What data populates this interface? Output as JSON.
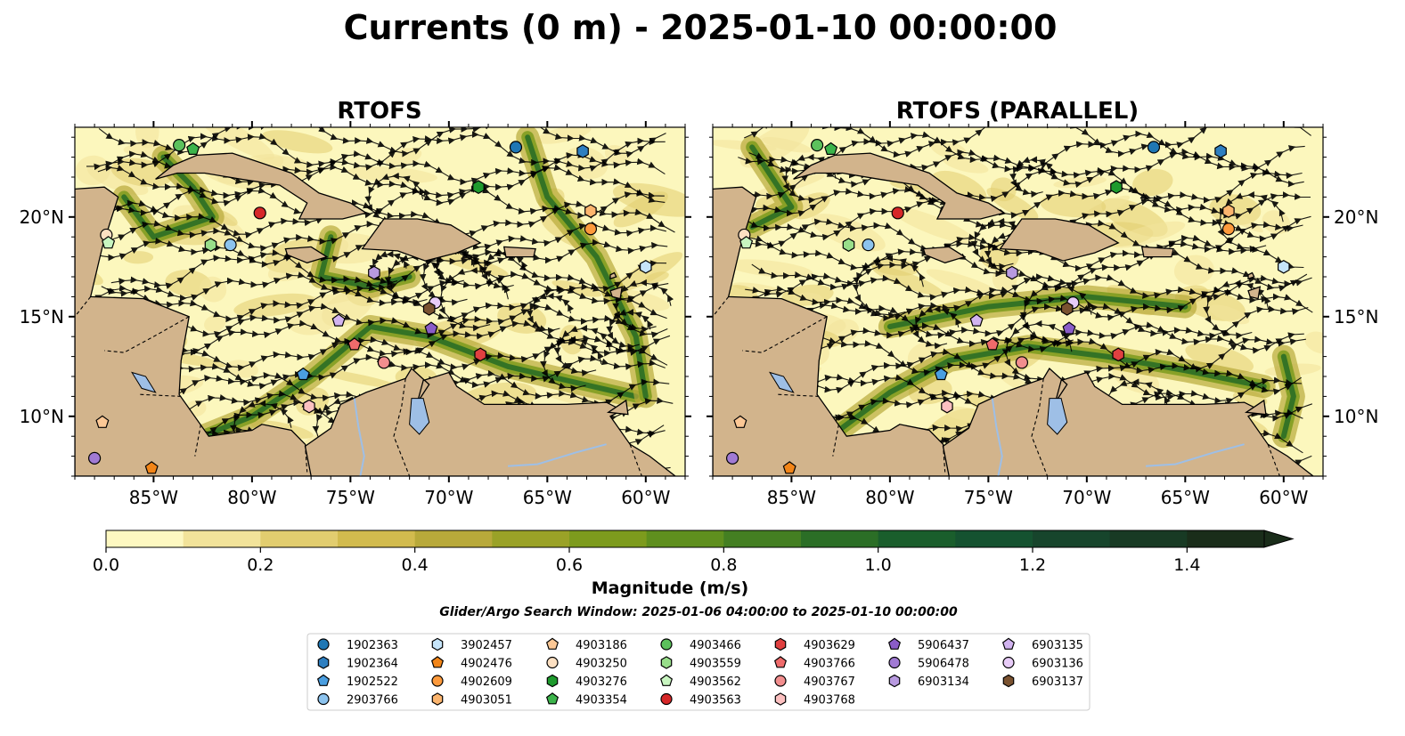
{
  "title": "Currents (0 m) - 2025-01-10 00:00:00",
  "panels": [
    {
      "title": "RTOFS"
    },
    {
      "title": "RTOFS (PARALLEL)"
    }
  ],
  "map": {
    "lon_range": [
      -89.0,
      -58.0
    ],
    "lat_range": [
      7.0,
      24.5
    ],
    "lon_ticks": [
      -85,
      -80,
      -75,
      -70,
      -65,
      -60
    ],
    "lon_tick_labels": [
      "85°W",
      "80°W",
      "75°W",
      "70°W",
      "65°W",
      "60°W"
    ],
    "lat_ticks": [
      10,
      15,
      20
    ],
    "lat_tick_labels": [
      "10°N",
      "15°N",
      "20°N"
    ],
    "land_color": "#d2b48c",
    "water_color": "#9ebfe6",
    "ocean_low_color": "#fcf7bd"
  },
  "colorbar": {
    "label": "Magnitude (m/s)",
    "range": [
      0.0,
      1.5
    ],
    "extend": "max",
    "tick_values": [
      0.0,
      0.2,
      0.4,
      0.6,
      0.8,
      1.0,
      1.2,
      1.4
    ],
    "tick_labels": [
      "0.0",
      "0.2",
      "0.4",
      "0.6",
      "0.8",
      "1.0",
      "1.2",
      "1.4"
    ],
    "colors": [
      "#fdf8c1",
      "#f2e39a",
      "#e2cd6f",
      "#d2bb4e",
      "#b8a93a",
      "#9aa227",
      "#7d9b1d",
      "#5f8f1e",
      "#447f22",
      "#2b6e26",
      "#1a5e2c",
      "#155230",
      "#17452c",
      "#183a24",
      "#1a2d1a"
    ]
  },
  "search_window": "Glider/Argo Search Window: 2025-01-06 04:00:00 to 2025-01-10 00:00:00",
  "legend": {
    "columns": [
      [
        {
          "id": "1902363",
          "marker": "circle",
          "color": "#1f77b4"
        },
        {
          "id": "1902364",
          "marker": "hexagon",
          "color": "#2e7fc0"
        },
        {
          "id": "1902522",
          "marker": "pentagon",
          "color": "#4a9ee0"
        },
        {
          "id": "2903766",
          "marker": "circle",
          "color": "#8cc3ee"
        }
      ],
      [
        {
          "id": "3902457",
          "marker": "hexagon",
          "color": "#c6e5fa"
        },
        {
          "id": "4902476",
          "marker": "pentagon",
          "color": "#f28518"
        },
        {
          "id": "4902609",
          "marker": "circle",
          "color": "#fd9a3c"
        },
        {
          "id": "4903051",
          "marker": "hexagon",
          "color": "#fcb56e"
        }
      ],
      [
        {
          "id": "4903186",
          "marker": "pentagon",
          "color": "#fcc896"
        },
        {
          "id": "4903250",
          "marker": "circle",
          "color": "#fde0c2"
        },
        {
          "id": "4903276",
          "marker": "hexagon",
          "color": "#1e9a2d"
        },
        {
          "id": "4903354",
          "marker": "pentagon",
          "color": "#3cb44b"
        }
      ],
      [
        {
          "id": "4903466",
          "marker": "circle",
          "color": "#5cc15c"
        },
        {
          "id": "4903559",
          "marker": "hexagon",
          "color": "#98de8a"
        },
        {
          "id": "4903562",
          "marker": "pentagon",
          "color": "#c8f5c0"
        },
        {
          "id": "4903563",
          "marker": "circle",
          "color": "#d62728"
        }
      ],
      [
        {
          "id": "4903629",
          "marker": "hexagon",
          "color": "#e04040"
        },
        {
          "id": "4903766",
          "marker": "pentagon",
          "color": "#ef6b6b"
        },
        {
          "id": "4903767",
          "marker": "circle",
          "color": "#f28e8e"
        },
        {
          "id": "4903768",
          "marker": "hexagon",
          "color": "#fcc0c0"
        }
      ],
      [
        {
          "id": "5906437",
          "marker": "pentagon",
          "color": "#8a5cc8"
        },
        {
          "id": "5906478",
          "marker": "circle",
          "color": "#a17ad4"
        },
        {
          "id": "6903134",
          "marker": "hexagon",
          "color": "#b89ae0"
        }
      ],
      [
        {
          "id": "6903135",
          "marker": "pentagon",
          "color": "#d2b4f0"
        },
        {
          "id": "6903136",
          "marker": "circle",
          "color": "#e8ccf8"
        },
        {
          "id": "6903137",
          "marker": "hexagon",
          "color": "#7a5230"
        }
      ]
    ]
  },
  "floats_rtofs": [
    {
      "id": "1902363",
      "lon": -66.6,
      "lat": 23.5
    },
    {
      "id": "1902364",
      "lon": -63.2,
      "lat": 23.3
    },
    {
      "id": "1902522",
      "lon": -77.4,
      "lat": 12.1
    },
    {
      "id": "2903766",
      "lon": -81.1,
      "lat": 18.6
    },
    {
      "id": "3902457",
      "lon": -60.0,
      "lat": 17.5
    },
    {
      "id": "4902476",
      "lon": -85.1,
      "lat": 7.4
    },
    {
      "id": "4902609",
      "lon": -62.8,
      "lat": 19.4
    },
    {
      "id": "4903051",
      "lon": -62.8,
      "lat": 20.3
    },
    {
      "id": "4903186",
      "lon": -87.6,
      "lat": 9.7
    },
    {
      "id": "4903250",
      "lon": -87.4,
      "lat": 19.1
    },
    {
      "id": "4903276",
      "lon": -68.5,
      "lat": 21.5
    },
    {
      "id": "4903354",
      "lon": -83.0,
      "lat": 23.4
    },
    {
      "id": "4903466",
      "lon": -83.7,
      "lat": 23.6
    },
    {
      "id": "4903559",
      "lon": -82.1,
      "lat": 18.6
    },
    {
      "id": "4903562",
      "lon": -87.3,
      "lat": 18.7
    },
    {
      "id": "4903563",
      "lon": -79.6,
      "lat": 20.2
    },
    {
      "id": "4903629",
      "lon": -68.4,
      "lat": 13.1
    },
    {
      "id": "4903766",
      "lon": -74.8,
      "lat": 13.6
    },
    {
      "id": "4903767",
      "lon": -73.3,
      "lat": 12.7
    },
    {
      "id": "4903768",
      "lon": -77.1,
      "lat": 10.5
    },
    {
      "id": "5906437",
      "lon": -70.9,
      "lat": 14.4
    },
    {
      "id": "5906478",
      "lon": -88.0,
      "lat": 7.9
    },
    {
      "id": "6903134",
      "lon": -73.8,
      "lat": 17.2
    },
    {
      "id": "6903135",
      "lon": -75.6,
      "lat": 14.8
    },
    {
      "id": "6903136",
      "lon": -70.7,
      "lat": 15.7
    },
    {
      "id": "6903137",
      "lon": -71.0,
      "lat": 15.4
    }
  ]
}
